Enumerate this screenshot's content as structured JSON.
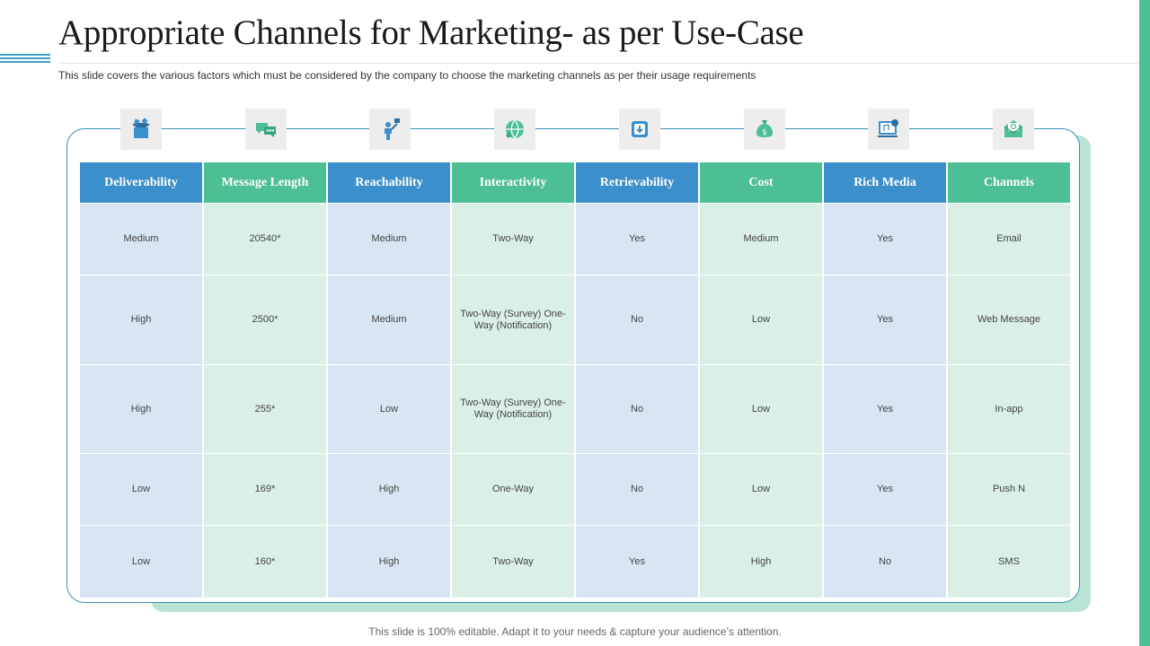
{
  "slide": {
    "title": "Appropriate Channels for Marketing- as per Use-Case",
    "subtitle": "This slide covers the various factors which must be considered by the company to choose the marketing channels as per their usage requirements",
    "footer": "This slide is 100% editable. Adapt it to your needs & capture your audience’s attention."
  },
  "colors": {
    "blue": "#3b8fca",
    "green": "#4dbf94",
    "blue_cell": "#d8e6f3",
    "green_cell": "#daf0e6",
    "shadow": "#b9e3d2"
  },
  "table": {
    "columns": [
      {
        "header": "Deliverability",
        "icon": "box-icon",
        "tone": "blue",
        "cells": [
          "Medium",
          "High",
          "High",
          "Low",
          "Low"
        ]
      },
      {
        "header": "Message Length",
        "icon": "chat-bubbles-icon",
        "tone": "green",
        "cells": [
          "20540*",
          "2500*",
          "255*",
          "169*",
          "160*"
        ]
      },
      {
        "header": "Reachability",
        "icon": "person-target-icon",
        "tone": "blue",
        "cells": [
          "Medium",
          "Medium",
          "Low",
          "High",
          "High"
        ]
      },
      {
        "header": "Interactivity",
        "icon": "globe-network-icon",
        "tone": "green",
        "cells": [
          "Two-Way",
          "Two-Way (Survey) One-Way (Notification)",
          "Two-Way (Survey) One-Way (Notification)",
          "One-Way",
          "Two-Way"
        ]
      },
      {
        "header": "Retrievability",
        "icon": "download-box-icon",
        "tone": "blue",
        "cells": [
          "Yes",
          "No",
          "No",
          "No",
          "Yes"
        ]
      },
      {
        "header": "Cost",
        "icon": "money-bag-icon",
        "tone": "green",
        "cells": [
          "Medium",
          "Low",
          "Low",
          "Low",
          "High"
        ]
      },
      {
        "header": "Rich Media",
        "icon": "media-screen-icon",
        "tone": "blue",
        "cells": [
          "Yes",
          "Yes",
          "Yes",
          "Yes",
          "No"
        ]
      },
      {
        "header": "Channels",
        "icon": "email-envelope-icon",
        "tone": "green",
        "cells": [
          "Email",
          "Web Message",
          "In-app",
          "Push N",
          "SMS"
        ]
      }
    ]
  }
}
